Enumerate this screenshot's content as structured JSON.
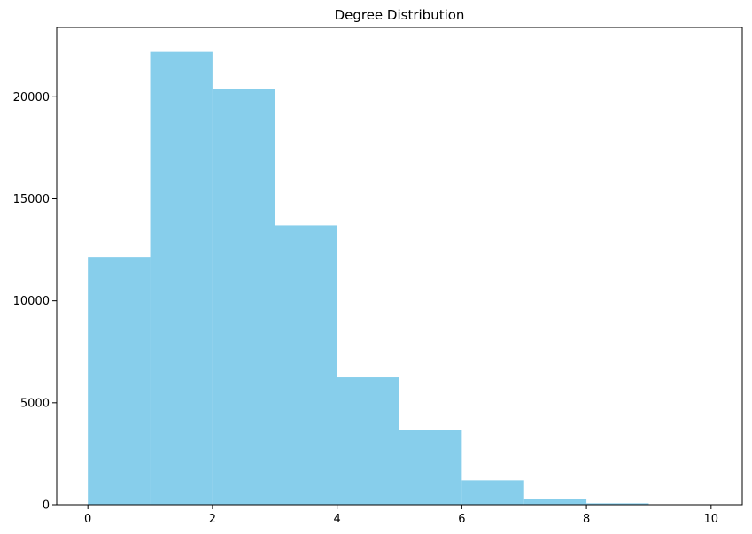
{
  "chart_data": {
    "type": "bar",
    "title": "Degree Distribution",
    "xlabel": "",
    "ylabel": "",
    "bins": [
      {
        "start": 0,
        "end": 1,
        "value": 12150
      },
      {
        "start": 1,
        "end": 2,
        "value": 22200
      },
      {
        "start": 2,
        "end": 3,
        "value": 20400
      },
      {
        "start": 3,
        "end": 4,
        "value": 13700
      },
      {
        "start": 4,
        "end": 5,
        "value": 6250
      },
      {
        "start": 5,
        "end": 6,
        "value": 3650
      },
      {
        "start": 6,
        "end": 7,
        "value": 1200
      },
      {
        "start": 7,
        "end": 8,
        "value": 280
      },
      {
        "start": 8,
        "end": 9,
        "value": 70
      },
      {
        "start": 9,
        "end": 10,
        "value": 10
      }
    ],
    "xlim": [
      -0.5,
      10.5
    ],
    "ylim": [
      0,
      23400
    ],
    "xticks": [
      0,
      2,
      4,
      6,
      8,
      10
    ],
    "yticks": [
      0,
      5000,
      10000,
      15000,
      20000
    ],
    "xtick_labels": [
      "0",
      "2",
      "4",
      "6",
      "8",
      "10"
    ],
    "ytick_labels": [
      "0",
      "5000",
      "10000",
      "15000",
      "20000"
    ],
    "bar_color": "#87ceeb",
    "grid": false,
    "legend": "none"
  }
}
